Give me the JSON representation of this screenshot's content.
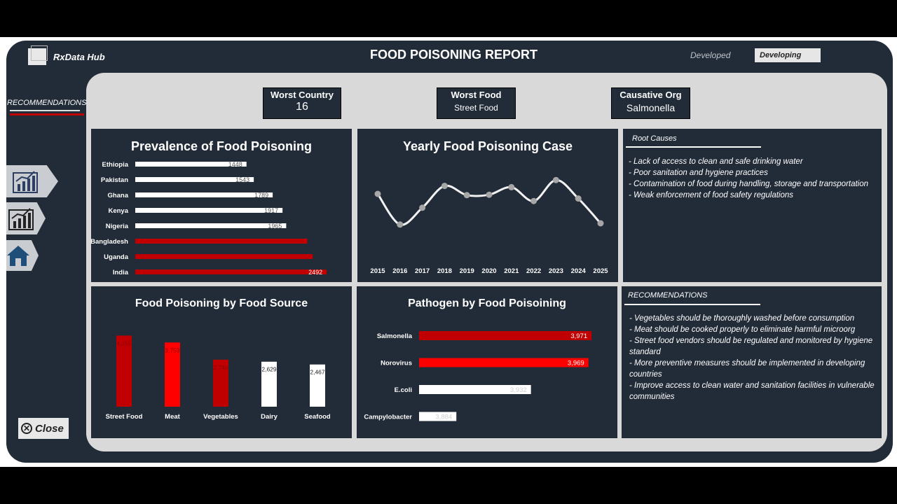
{
  "app": {
    "name": "RxData Hub"
  },
  "header": {
    "title": "FOOD POISONING REPORT",
    "developed_label": "Developed",
    "filter_value": "Developing"
  },
  "sidebar": {
    "recommendations_link": "RECOMMENDATIONS",
    "close_label": "Close",
    "nav": [
      {
        "icon": "bar-chart-icon"
      },
      {
        "icon": "bar-chart-icon"
      },
      {
        "icon": "home-icon"
      }
    ]
  },
  "kpis": [
    {
      "title": "Worst Country",
      "value": "16"
    },
    {
      "title": "Worst Food",
      "value": "Street Food"
    },
    {
      "title": "Causative Org",
      "value": "Salmonella"
    }
  ],
  "root_causes": {
    "heading": "Root Causes",
    "lines": [
      "- Lack of access to clean and safe drinking water",
      "- Poor sanitation and hygiene practices",
      "- Contamination of food during handling, storage and transportation",
      "- Weak enforcement of food safety regulations"
    ]
  },
  "recommendations": {
    "heading": "RECOMMENDATIONS",
    "lines": [
      "- Vegetables should be thoroughly washed before consumption",
      "- Meat should be cooked properly to eliminate harmful microorg",
      "- Street food vendors should be regulated and monitored by hygiene standard",
      "- More preventive measures should be implemented in developing countries",
      "- Improve access to clean water and sanitation facilities in vulnerable communities"
    ]
  },
  "colors": {
    "background": "#222b38",
    "accent_red": "#c00000",
    "bright_red": "#ff0000",
    "panel_frame": "#d9d9d9"
  },
  "chart_data": [
    {
      "type": "bar",
      "orientation": "horizontal",
      "title": "Prevalence of Food Poisoning",
      "categories": [
        "Ethiopia",
        "Pakistan",
        "Ghana",
        "Kenya",
        "Nigeria",
        "Bangladesh",
        "Uganda",
        "India"
      ],
      "values": [
        1448,
        1543,
        1789,
        1917,
        1965,
        2240,
        2310,
        2492
      ],
      "bar_colors": [
        "#ffffff",
        "#ffffff",
        "#ffffff",
        "#ffffff",
        "#ffffff",
        "#c00000",
        "#c00000",
        "#c00000"
      ],
      "data_labels": [
        "1448",
        "1543",
        "1789",
        "1917",
        "1965",
        "",
        "",
        "2492"
      ],
      "xlim": [
        0,
        2600
      ]
    },
    {
      "type": "line",
      "title": "Yearly Food Poisoning Case",
      "x": [
        "2015",
        "2016",
        "2017",
        "2018",
        "2019",
        "2020",
        "2021",
        "2022",
        "2023",
        "2024",
        "2025"
      ],
      "values": [
        1850,
        1120,
        1520,
        2040,
        1820,
        1830,
        2010,
        1680,
        2180,
        1740,
        1150
      ],
      "ylim": [
        900,
        2400
      ],
      "smooth": true
    },
    {
      "type": "bar",
      "orientation": "vertical",
      "title": "Food Poisoning by Food Source",
      "categories": [
        "Street Food",
        "Meat",
        "Vegetables",
        "Dairy",
        "Seafood"
      ],
      "values": [
        4155,
        3753,
        2748,
        2629,
        2467
      ],
      "data_labels": [
        "4,155",
        "3,753",
        "2,748",
        "2,629",
        "2,467"
      ],
      "bar_colors": [
        "#c00000",
        "#ff0000",
        "#c00000",
        "#ffffff",
        "#ffffff"
      ],
      "ylim": [
        0,
        4500
      ]
    },
    {
      "type": "bar",
      "orientation": "horizontal",
      "title": "Pathogen by Food Poisoining",
      "categories": [
        "Salmonella",
        "Norovirus",
        "E.coli",
        "Campylobacter"
      ],
      "values": [
        3971,
        3969,
        3932,
        3884
      ],
      "data_labels": [
        "3,971",
        "3,969",
        "3,932",
        "3,884"
      ],
      "bar_colors": [
        "#c00000",
        "#ff0000",
        "#ffffff",
        "#ffffff"
      ],
      "xlim": [
        3860,
        3975
      ]
    }
  ]
}
